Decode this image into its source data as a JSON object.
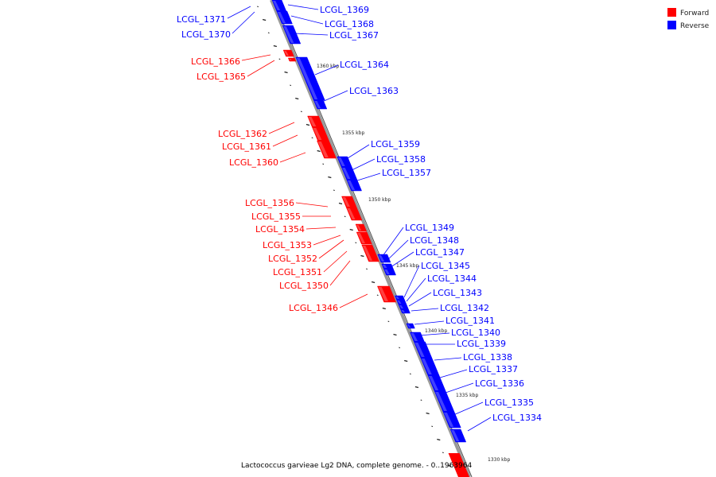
{
  "caption": "Lactococcus garvieae Lg2 DNA, complete genome. - 0..1963964",
  "legend": [
    {
      "label": "Forward",
      "color": "#ff0000"
    },
    {
      "label": "Reverse",
      "color": "#0000ff"
    }
  ],
  "colors": {
    "forward": "#ff0000",
    "reverse": "#0000ff",
    "backbone": "#999999"
  },
  "scale_labels": [
    "1360 kbp",
    "1355 kbp",
    "1350 kbp",
    "1345 kbp",
    "1340 kbp",
    "1335 kbp",
    "1330 kbp"
  ],
  "genes": [
    {
      "name": "LCGL_1371",
      "strand": "reverse"
    },
    {
      "name": "LCGL_1370",
      "strand": "reverse"
    },
    {
      "name": "LCGL_1369",
      "strand": "reverse"
    },
    {
      "name": "LCGL_1368",
      "strand": "reverse"
    },
    {
      "name": "LCGL_1367",
      "strand": "reverse"
    },
    {
      "name": "LCGL_1366",
      "strand": "forward"
    },
    {
      "name": "LCGL_1365",
      "strand": "forward"
    },
    {
      "name": "LCGL_1364",
      "strand": "reverse"
    },
    {
      "name": "LCGL_1363",
      "strand": "reverse"
    },
    {
      "name": "LCGL_1362",
      "strand": "forward"
    },
    {
      "name": "LCGL_1361",
      "strand": "forward"
    },
    {
      "name": "LCGL_1360",
      "strand": "forward"
    },
    {
      "name": "LCGL_1359",
      "strand": "reverse"
    },
    {
      "name": "LCGL_1358",
      "strand": "reverse"
    },
    {
      "name": "LCGL_1357",
      "strand": "reverse"
    },
    {
      "name": "LCGL_1356",
      "strand": "forward"
    },
    {
      "name": "LCGL_1355",
      "strand": "forward"
    },
    {
      "name": "LCGL_1354",
      "strand": "forward"
    },
    {
      "name": "LCGL_1353",
      "strand": "forward"
    },
    {
      "name": "LCGL_1352",
      "strand": "forward"
    },
    {
      "name": "LCGL_1351",
      "strand": "forward"
    },
    {
      "name": "LCGL_1350",
      "strand": "forward"
    },
    {
      "name": "LCGL_1346",
      "strand": "forward"
    },
    {
      "name": "LCGL_1349",
      "strand": "reverse"
    },
    {
      "name": "LCGL_1348",
      "strand": "reverse"
    },
    {
      "name": "LCGL_1347",
      "strand": "reverse"
    },
    {
      "name": "LCGL_1345",
      "strand": "reverse"
    },
    {
      "name": "LCGL_1344",
      "strand": "reverse"
    },
    {
      "name": "LCGL_1343",
      "strand": "reverse"
    },
    {
      "name": "LCGL_1342",
      "strand": "reverse"
    },
    {
      "name": "LCGL_1341",
      "strand": "reverse"
    },
    {
      "name": "LCGL_1340",
      "strand": "reverse"
    },
    {
      "name": "LCGL_1339",
      "strand": "reverse"
    },
    {
      "name": "LCGL_1338",
      "strand": "reverse"
    },
    {
      "name": "LCGL_1337",
      "strand": "reverse"
    },
    {
      "name": "LCGL_1336",
      "strand": "reverse"
    },
    {
      "name": "LCGL_1335",
      "strand": "reverse"
    },
    {
      "name": "LCGL_1334",
      "strand": "reverse"
    }
  ]
}
